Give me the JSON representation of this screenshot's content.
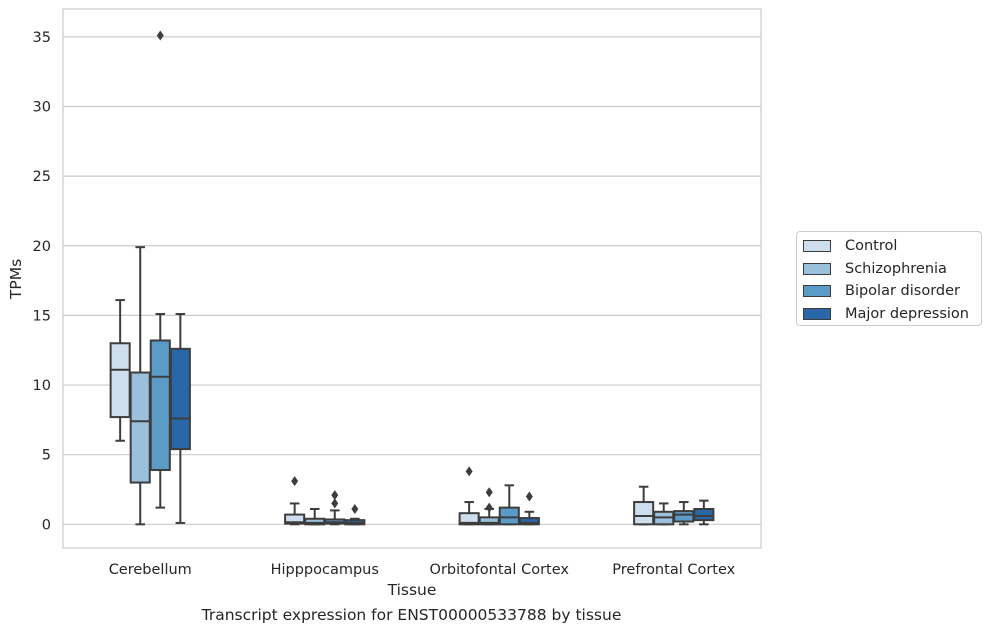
{
  "chart_data": {
    "type": "box",
    "title": "",
    "xlabel": "Tissue",
    "ylabel": "TPMs",
    "caption": "Transcript expression for ENST00000533788 by tissue",
    "categories": [
      "Cerebellum",
      "Hipppocampus",
      "Orbitofontal Cortex",
      "Prefrontal Cortex"
    ],
    "ylim": [
      -1.7,
      37
    ],
    "yticks": [
      0,
      5,
      10,
      15,
      20,
      25,
      30,
      35
    ],
    "grid": "horizontal",
    "legend_position": "right",
    "series": [
      {
        "name": "Control",
        "color": "#cfdeee",
        "boxes": [
          {
            "whislo": 6.0,
            "q1": 7.7,
            "med": 11.1,
            "q3": 13.0,
            "whishi": 16.1,
            "fliers": []
          },
          {
            "whislo": 0.0,
            "q1": 0.05,
            "med": 0.15,
            "q3": 0.7,
            "whishi": 1.5,
            "fliers": [
              3.1
            ]
          },
          {
            "whislo": 0.0,
            "q1": 0.0,
            "med": 0.1,
            "q3": 0.8,
            "whishi": 1.6,
            "fliers": [
              3.8
            ]
          },
          {
            "whislo": 0.0,
            "q1": 0.0,
            "med": 0.6,
            "q3": 1.6,
            "whishi": 2.7,
            "fliers": []
          }
        ]
      },
      {
        "name": "Schizophrenia",
        "color": "#9ac0db",
        "boxes": [
          {
            "whislo": 0.0,
            "q1": 3.0,
            "med": 7.4,
            "q3": 10.9,
            "whishi": 19.9,
            "fliers": []
          },
          {
            "whislo": 0.0,
            "q1": 0.0,
            "med": 0.1,
            "q3": 0.4,
            "whishi": 1.1,
            "fliers": []
          },
          {
            "whislo": 0.0,
            "q1": 0.0,
            "med": 0.1,
            "q3": 0.5,
            "whishi": 1.1,
            "fliers": [
              1.2,
              2.3
            ]
          },
          {
            "whislo": 0.0,
            "q1": 0.0,
            "med": 0.5,
            "q3": 0.9,
            "whishi": 1.5,
            "fliers": []
          }
        ]
      },
      {
        "name": "Bipolar disorder",
        "color": "#5b9bc8",
        "boxes": [
          {
            "whislo": 1.2,
            "q1": 3.9,
            "med": 10.6,
            "q3": 13.2,
            "whishi": 15.1,
            "fliers": [
              35.1
            ]
          },
          {
            "whislo": 0.0,
            "q1": 0.05,
            "med": 0.15,
            "q3": 0.35,
            "whishi": 1.0,
            "fliers": [
              1.5,
              2.1
            ]
          },
          {
            "whislo": 0.0,
            "q1": 0.0,
            "med": 0.5,
            "q3": 1.2,
            "whishi": 2.8,
            "fliers": []
          },
          {
            "whislo": 0.0,
            "q1": 0.2,
            "med": 0.7,
            "q3": 0.95,
            "whishi": 1.6,
            "fliers": []
          }
        ]
      },
      {
        "name": "Major depression",
        "color": "#2967a8",
        "boxes": [
          {
            "whislo": 0.1,
            "q1": 5.4,
            "med": 7.6,
            "q3": 12.6,
            "whishi": 15.1,
            "fliers": []
          },
          {
            "whislo": 0.0,
            "q1": 0.0,
            "med": 0.1,
            "q3": 0.3,
            "whishi": 0.4,
            "fliers": [
              1.1
            ]
          },
          {
            "whislo": 0.0,
            "q1": 0.0,
            "med": 0.1,
            "q3": 0.45,
            "whishi": 0.9,
            "fliers": [
              2.0
            ]
          },
          {
            "whislo": 0.0,
            "q1": 0.3,
            "med": 0.6,
            "q3": 1.1,
            "whishi": 1.7,
            "fliers": []
          }
        ]
      }
    ]
  }
}
